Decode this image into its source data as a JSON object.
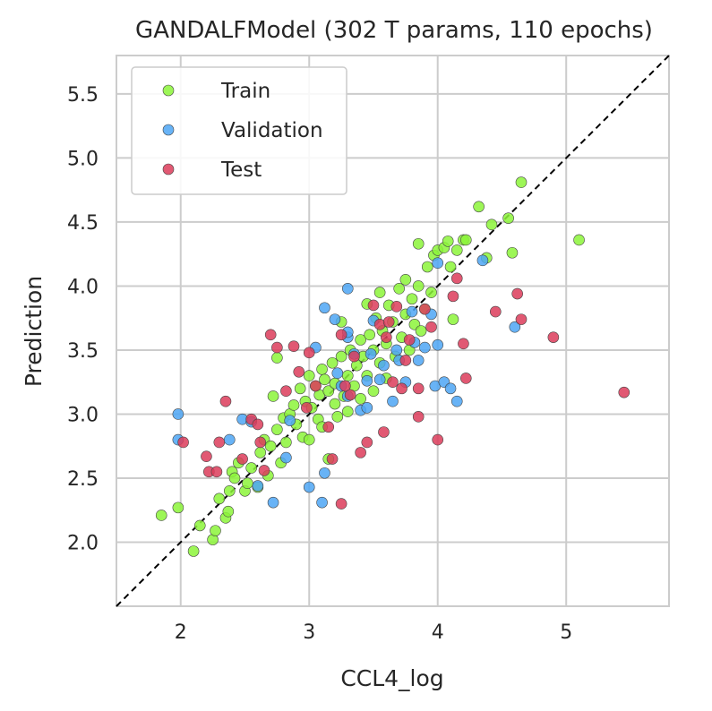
{
  "chart_data": {
    "type": "scatter",
    "title": "GANDALFModel (302 T params, 110 epochs)",
    "xlabel": "CCL4_log",
    "ylabel": "Prediction",
    "xlim": [
      1.5,
      5.8
    ],
    "ylim": [
      1.5,
      5.8
    ],
    "xticks": [
      2,
      3,
      4,
      5
    ],
    "yticks": [
      2.0,
      2.5,
      3.0,
      3.5,
      4.0,
      4.5,
      5.0,
      5.5
    ],
    "xtick_labels": [
      "2",
      "3",
      "4",
      "5"
    ],
    "ytick_labels": [
      "2.0",
      "2.5",
      "3.0",
      "3.5",
      "4.0",
      "4.5",
      "5.0",
      "5.5"
    ],
    "grid": true,
    "legend_position": "top-left",
    "identity_line": true,
    "series": [
      {
        "name": "Train",
        "color": "#8cf53a",
        "points": [
          [
            1.85,
            2.21
          ],
          [
            1.98,
            2.27
          ],
          [
            2.1,
            1.93
          ],
          [
            2.15,
            2.13
          ],
          [
            2.25,
            2.02
          ],
          [
            2.27,
            2.09
          ],
          [
            2.3,
            2.34
          ],
          [
            2.35,
            2.19
          ],
          [
            2.37,
            2.24
          ],
          [
            2.38,
            2.4
          ],
          [
            2.4,
            2.55
          ],
          [
            2.42,
            2.5
          ],
          [
            2.45,
            2.62
          ],
          [
            2.5,
            2.4
          ],
          [
            2.52,
            2.46
          ],
          [
            2.55,
            2.58
          ],
          [
            2.6,
            2.43
          ],
          [
            2.62,
            2.7
          ],
          [
            2.65,
            2.8
          ],
          [
            2.68,
            2.52
          ],
          [
            2.7,
            2.75
          ],
          [
            2.72,
            3.14
          ],
          [
            2.75,
            3.44
          ],
          [
            2.75,
            2.88
          ],
          [
            2.78,
            2.62
          ],
          [
            2.8,
            2.97
          ],
          [
            2.82,
            2.78
          ],
          [
            2.85,
            3.0
          ],
          [
            2.88,
            3.07
          ],
          [
            2.9,
            2.92
          ],
          [
            2.93,
            3.2
          ],
          [
            2.95,
            2.82
          ],
          [
            2.97,
            3.1
          ],
          [
            3.0,
            2.8
          ],
          [
            3.0,
            3.3
          ],
          [
            3.02,
            3.05
          ],
          [
            3.05,
            3.22
          ],
          [
            3.07,
            2.96
          ],
          [
            3.08,
            3.15
          ],
          [
            3.1,
            3.35
          ],
          [
            3.1,
            2.9
          ],
          [
            3.12,
            3.27
          ],
          [
            3.15,
            3.18
          ],
          [
            3.15,
            2.65
          ],
          [
            3.18,
            3.4
          ],
          [
            3.2,
            3.08
          ],
          [
            3.2,
            3.24
          ],
          [
            3.22,
            2.98
          ],
          [
            3.25,
            3.45
          ],
          [
            3.25,
            3.72
          ],
          [
            3.27,
            3.14
          ],
          [
            3.3,
            3.3
          ],
          [
            3.3,
            3.02
          ],
          [
            3.32,
            3.5
          ],
          [
            3.35,
            3.22
          ],
          [
            3.37,
            3.38
          ],
          [
            3.4,
            3.58
          ],
          [
            3.4,
            3.12
          ],
          [
            3.42,
            3.45
          ],
          [
            3.45,
            3.3
          ],
          [
            3.45,
            3.86
          ],
          [
            3.47,
            3.62
          ],
          [
            3.5,
            3.5
          ],
          [
            3.5,
            3.18
          ],
          [
            3.52,
            3.75
          ],
          [
            3.55,
            3.4
          ],
          [
            3.55,
            3.95
          ],
          [
            3.57,
            3.65
          ],
          [
            3.6,
            3.55
          ],
          [
            3.6,
            3.28
          ],
          [
            3.62,
            3.85
          ],
          [
            3.65,
            3.72
          ],
          [
            3.67,
            3.45
          ],
          [
            3.7,
            3.98
          ],
          [
            3.72,
            3.6
          ],
          [
            3.75,
            3.78
          ],
          [
            3.75,
            4.05
          ],
          [
            3.78,
            3.5
          ],
          [
            3.8,
            3.9
          ],
          [
            3.82,
            3.7
          ],
          [
            3.85,
            4.0
          ],
          [
            3.85,
            4.33
          ],
          [
            3.87,
            3.65
          ],
          [
            3.9,
            3.82
          ],
          [
            3.92,
            4.15
          ],
          [
            3.95,
            3.95
          ],
          [
            3.97,
            4.24
          ],
          [
            4.0,
            4.28
          ],
          [
            4.05,
            4.3
          ],
          [
            4.08,
            4.35
          ],
          [
            4.1,
            4.15
          ],
          [
            4.12,
            3.74
          ],
          [
            4.15,
            4.28
          ],
          [
            4.2,
            4.36
          ],
          [
            4.22,
            4.36
          ],
          [
            4.32,
            4.62
          ],
          [
            4.38,
            4.22
          ],
          [
            4.42,
            4.48
          ],
          [
            4.55,
            4.53
          ],
          [
            4.58,
            4.26
          ],
          [
            4.65,
            4.81
          ],
          [
            5.1,
            4.36
          ]
        ]
      },
      {
        "name": "Validation",
        "color": "#4da6f5",
        "points": [
          [
            1.98,
            3.0
          ],
          [
            1.98,
            2.8
          ],
          [
            2.38,
            2.8
          ],
          [
            2.48,
            2.96
          ],
          [
            2.55,
            2.94
          ],
          [
            2.6,
            2.44
          ],
          [
            2.72,
            2.31
          ],
          [
            2.82,
            2.66
          ],
          [
            2.85,
            2.95
          ],
          [
            3.0,
            2.43
          ],
          [
            3.05,
            3.52
          ],
          [
            3.1,
            2.31
          ],
          [
            3.12,
            2.54
          ],
          [
            3.12,
            3.83
          ],
          [
            3.2,
            3.74
          ],
          [
            3.22,
            3.32
          ],
          [
            3.25,
            3.22
          ],
          [
            3.3,
            3.6
          ],
          [
            3.3,
            3.14
          ],
          [
            3.3,
            3.64
          ],
          [
            3.3,
            3.98
          ],
          [
            3.35,
            3.47
          ],
          [
            3.4,
            3.03
          ],
          [
            3.45,
            3.05
          ],
          [
            3.45,
            3.26
          ],
          [
            3.48,
            3.47
          ],
          [
            3.5,
            3.73
          ],
          [
            3.55,
            3.27
          ],
          [
            3.58,
            3.38
          ],
          [
            3.65,
            3.1
          ],
          [
            3.68,
            3.5
          ],
          [
            3.7,
            3.42
          ],
          [
            3.75,
            3.25
          ],
          [
            3.8,
            3.8
          ],
          [
            3.82,
            3.56
          ],
          [
            3.85,
            3.42
          ],
          [
            3.9,
            3.52
          ],
          [
            3.95,
            3.78
          ],
          [
            3.98,
            3.22
          ],
          [
            4.0,
            3.54
          ],
          [
            4.0,
            4.18
          ],
          [
            4.05,
            3.25
          ],
          [
            4.1,
            3.2
          ],
          [
            4.15,
            3.1
          ],
          [
            4.35,
            4.2
          ],
          [
            4.6,
            3.68
          ]
        ]
      },
      {
        "name": "Test",
        "color": "#dc3c5a",
        "points": [
          [
            2.02,
            2.78
          ],
          [
            2.2,
            2.67
          ],
          [
            2.22,
            2.55
          ],
          [
            2.28,
            2.55
          ],
          [
            2.3,
            2.78
          ],
          [
            2.35,
            3.1
          ],
          [
            2.48,
            2.65
          ],
          [
            2.55,
            2.96
          ],
          [
            2.6,
            2.92
          ],
          [
            2.62,
            2.78
          ],
          [
            2.65,
            2.56
          ],
          [
            2.7,
            3.62
          ],
          [
            2.75,
            3.52
          ],
          [
            2.82,
            3.18
          ],
          [
            2.88,
            3.53
          ],
          [
            2.92,
            3.33
          ],
          [
            2.98,
            3.05
          ],
          [
            3.0,
            3.48
          ],
          [
            3.05,
            3.22
          ],
          [
            3.15,
            2.9
          ],
          [
            3.18,
            2.65
          ],
          [
            3.25,
            3.62
          ],
          [
            3.25,
            2.3
          ],
          [
            3.28,
            3.22
          ],
          [
            3.32,
            3.15
          ],
          [
            3.35,
            3.45
          ],
          [
            3.4,
            2.7
          ],
          [
            3.45,
            2.78
          ],
          [
            3.5,
            3.85
          ],
          [
            3.55,
            3.7
          ],
          [
            3.58,
            2.86
          ],
          [
            3.6,
            3.6
          ],
          [
            3.62,
            3.72
          ],
          [
            3.65,
            3.25
          ],
          [
            3.68,
            3.84
          ],
          [
            3.72,
            3.2
          ],
          [
            3.75,
            3.42
          ],
          [
            3.78,
            3.58
          ],
          [
            3.85,
            2.98
          ],
          [
            3.85,
            3.2
          ],
          [
            3.9,
            3.82
          ],
          [
            3.95,
            3.68
          ],
          [
            4.0,
            2.8
          ],
          [
            4.12,
            3.92
          ],
          [
            4.15,
            4.06
          ],
          [
            4.2,
            3.55
          ],
          [
            4.22,
            3.28
          ],
          [
            4.45,
            3.8
          ],
          [
            4.62,
            3.94
          ],
          [
            4.65,
            3.74
          ],
          [
            4.9,
            3.6
          ],
          [
            5.45,
            3.17
          ]
        ]
      }
    ]
  }
}
